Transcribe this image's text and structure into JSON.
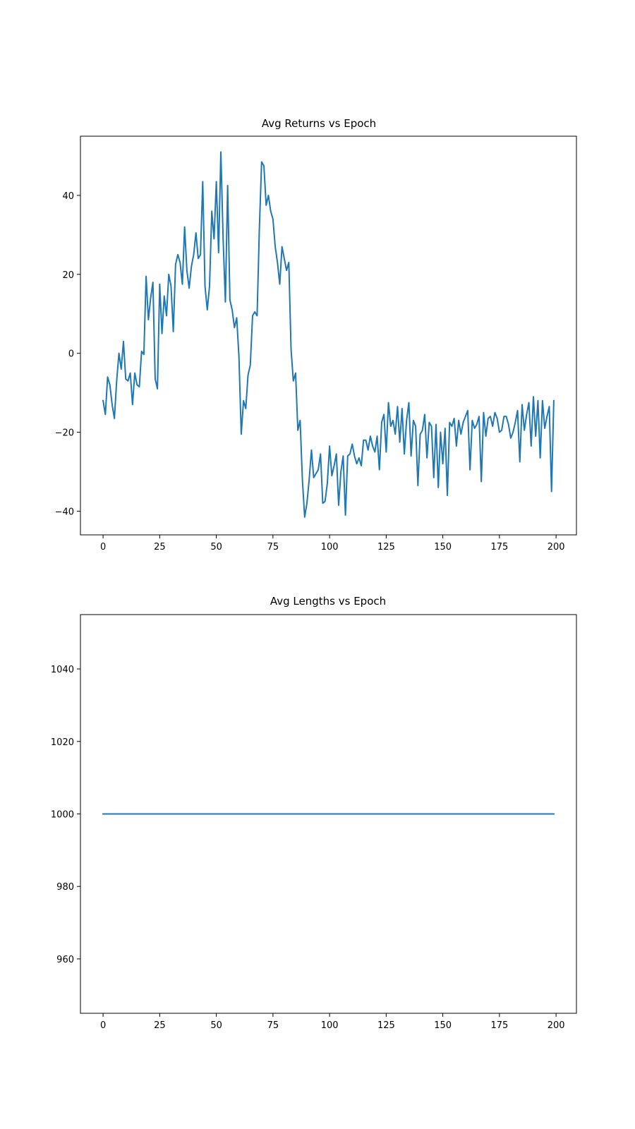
{
  "chart_data": [
    {
      "type": "line",
      "title": "Avg Returns vs Epoch",
      "xlabel": "",
      "ylabel": "",
      "xlim": [
        -10,
        209
      ],
      "ylim": [
        -46,
        55
      ],
      "xticks": [
        0,
        25,
        50,
        75,
        100,
        125,
        150,
        175,
        200
      ],
      "yticks": [
        -40,
        -20,
        0,
        20,
        40
      ],
      "grid": false,
      "color": "#1f77b4",
      "series": [
        {
          "name": "avg_returns",
          "values": [
            -12,
            -15.5,
            -6,
            -8,
            -13,
            -16.5,
            -7,
            0,
            -4,
            3,
            -6.5,
            -7,
            -5,
            -13,
            -5,
            -8,
            -8.5,
            0.5,
            -0.3,
            19.5,
            8.5,
            14,
            18,
            -6.5,
            -9,
            17.5,
            5,
            14.5,
            9.5,
            20,
            17,
            5.5,
            22.5,
            25,
            23,
            17.5,
            32,
            21,
            16.5,
            22,
            25,
            30.5,
            24,
            25,
            43.5,
            17,
            11,
            17,
            36,
            29,
            43.5,
            25.5,
            51,
            29,
            13,
            42.5,
            13.5,
            11,
            6.5,
            9,
            -1,
            -20.5,
            -12,
            -14,
            -5.5,
            -3,
            9.5,
            10.5,
            9.5,
            31.5,
            48.5,
            47.5,
            37.5,
            40,
            36,
            34,
            27,
            23,
            17.5,
            27,
            24,
            21,
            23,
            1,
            -7,
            -5,
            -19.5,
            -17,
            -32,
            -41.5,
            -38,
            -32,
            -24.5,
            -31.5,
            -30.5,
            -29.5,
            -25.5,
            -38,
            -37.5,
            -33,
            -23.5,
            -31,
            -28.5,
            -25.5,
            -38.5,
            -30,
            -26,
            -41,
            -26,
            -25.5,
            -23,
            -26,
            -28,
            -26.5,
            -28.5,
            -22,
            -22,
            -24.5,
            -21,
            -23.5,
            -25,
            -21,
            -29.5,
            -17.5,
            -15.5,
            -25,
            -12.5,
            -18.5,
            -17,
            -20.5,
            -13.5,
            -22.5,
            -14,
            -25.5,
            -17,
            -12.5,
            -26,
            -17,
            -18.5,
            -33.5,
            -20.5,
            -19.5,
            -15.5,
            -26.5,
            -17.5,
            -18.5,
            -31.5,
            -18,
            -34,
            -20,
            -28,
            -19,
            -36,
            -17.5,
            -18.5,
            -16.5,
            -23.5,
            -17,
            -20.5,
            -17.5,
            -16,
            -14.5,
            -29.5,
            -17,
            -19,
            -18,
            -16,
            -32.5,
            -15,
            -21,
            -16.5,
            -16,
            -18.5,
            -15,
            -16.5,
            -20,
            -19.5,
            -16,
            -16,
            -18,
            -21.5,
            -20,
            -17.5,
            -14.5,
            -27.5,
            -13,
            -19.5,
            -15.5,
            -12.5,
            -23.5,
            -11,
            -21,
            -12,
            -26.5,
            -12,
            -19,
            -16,
            -13.5,
            -35,
            -12
          ]
        }
      ]
    },
    {
      "type": "line",
      "title": "Avg Lengths vs Epoch",
      "xlabel": "",
      "ylabel": "",
      "xlim": [
        -10,
        209
      ],
      "ylim": [
        945,
        1055
      ],
      "xticks": [
        0,
        25,
        50,
        75,
        100,
        125,
        150,
        175,
        200
      ],
      "yticks": [
        960,
        980,
        1000,
        1020,
        1040
      ],
      "grid": false,
      "color": "#1f77b4",
      "series": [
        {
          "name": "avg_lengths",
          "x": [
            0,
            199
          ],
          "values": [
            1000,
            1000
          ]
        }
      ]
    }
  ]
}
